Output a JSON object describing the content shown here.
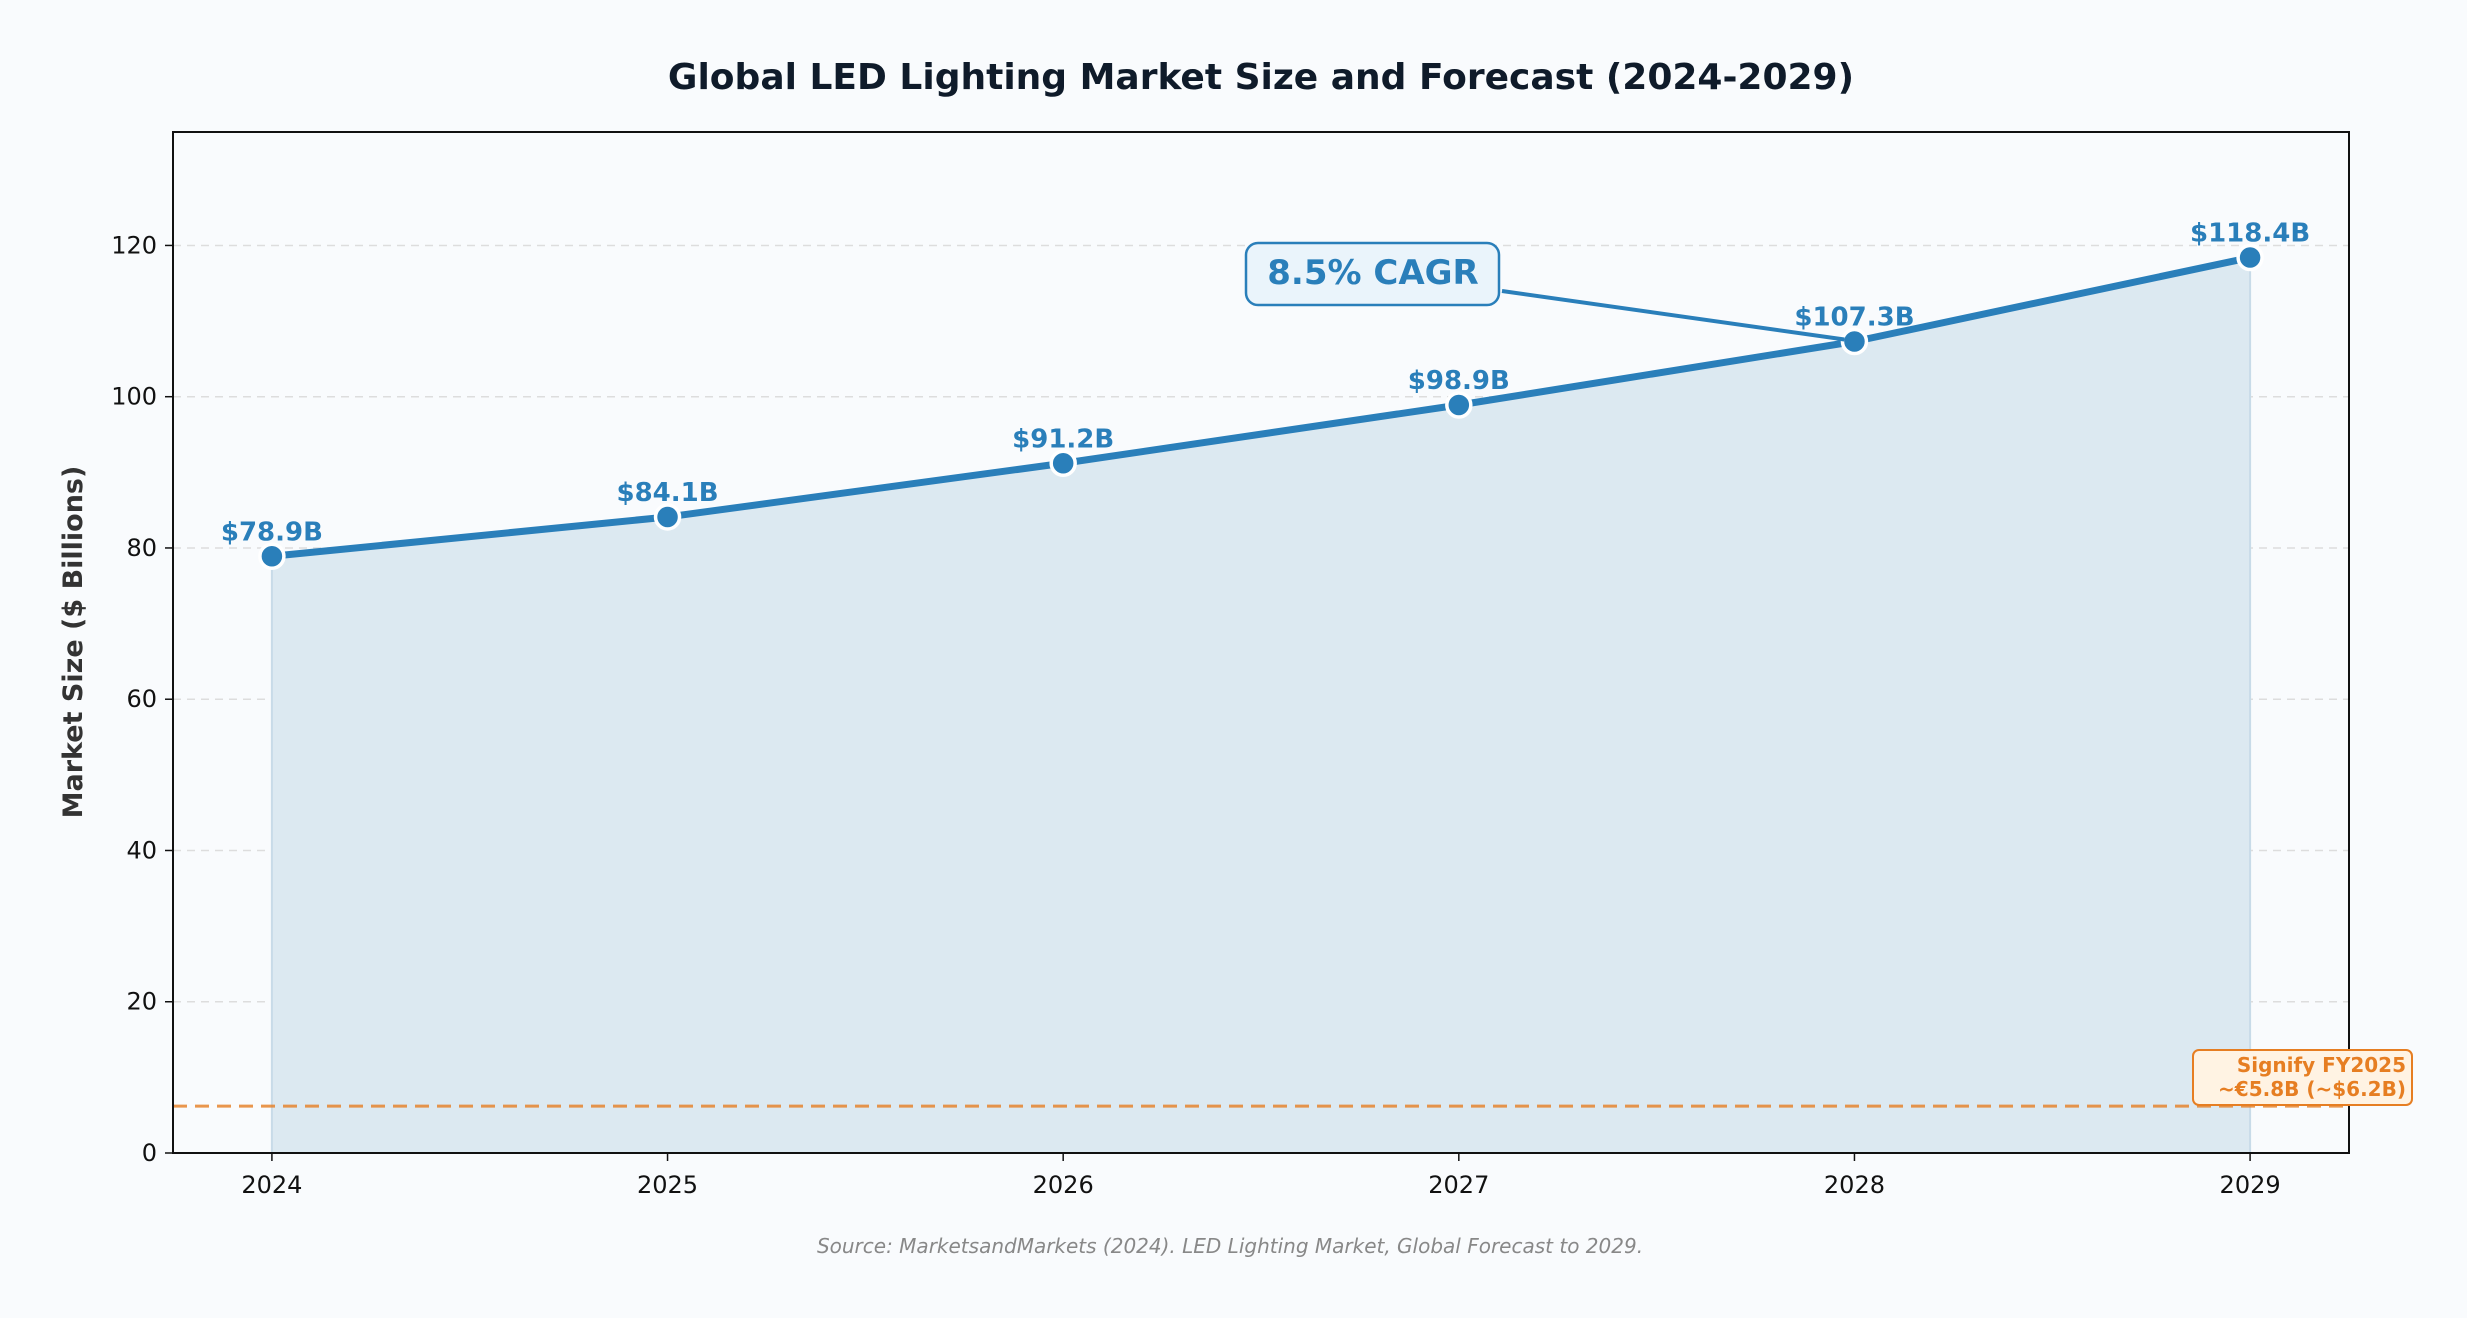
{
  "chart_data": {
    "type": "area",
    "title": "Global LED Lighting Market Size and Forecast (2024-2029)",
    "xlabel": "",
    "ylabel": "Market Size ($ Billions)",
    "x": [
      2024,
      2025,
      2026,
      2027,
      2028,
      2029
    ],
    "values": [
      78.9,
      84.1,
      91.2,
      98.9,
      107.3,
      118.4
    ],
    "data_labels": [
      "$78.9B",
      "$84.1B",
      "$91.2B",
      "$98.9B",
      "$107.3B",
      "$118.4B"
    ],
    "xticks": [
      "2024",
      "2025",
      "2026",
      "2027",
      "2028",
      "2029"
    ],
    "yticks": [
      "0",
      "20",
      "40",
      "60",
      "80",
      "100",
      "120"
    ],
    "ytick_values": [
      0,
      20,
      40,
      60,
      80,
      100,
      120
    ],
    "xlim": [
      2023.75,
      2029.25
    ],
    "ylim": [
      0,
      135
    ],
    "grid": "horizontal dashed",
    "annotations": {
      "cagr": {
        "text": "8.5% CAGR",
        "points_to_x": 2028,
        "points_to_y": 107.3
      },
      "reference_line": {
        "y": 6.2,
        "line1": "Signify FY2025",
        "line2": "~€5.8B (~$6.2B)"
      }
    },
    "source": "Source: MarketsandMarkets (2024). LED Lighting Market, Global Forecast to 2029.",
    "colors": {
      "line": "#2a7fba",
      "fill": "#dce9f1",
      "reference": "#e67e22",
      "title": "#0f1b2a"
    }
  }
}
